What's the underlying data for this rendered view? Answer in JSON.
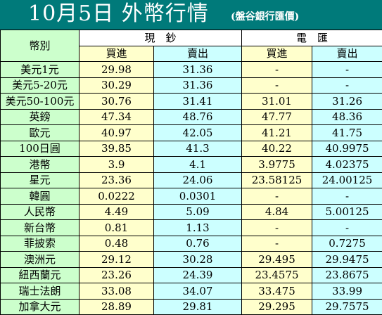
{
  "header": {
    "title": "10月5日 外幣行情",
    "subtitle": "(盤谷銀行匯價)"
  },
  "table": {
    "corner_label": "幣別",
    "groups": {
      "cash": "現　鈔",
      "remit": "電　匯"
    },
    "sub_headers": [
      "買進",
      "賣出",
      "買進",
      "賣出"
    ],
    "rows": [
      {
        "currency": "美元1元",
        "cash_buy": "29.98",
        "cash_sell": "31.36",
        "remit_buy": "-",
        "remit_sell": "-"
      },
      {
        "currency": "美元5-20元",
        "cash_buy": "30.29",
        "cash_sell": "31.36",
        "remit_buy": "-",
        "remit_sell": "-"
      },
      {
        "currency": "美元50-100元",
        "cash_buy": "30.76",
        "cash_sell": "31.41",
        "remit_buy": "31.01",
        "remit_sell": "31.26"
      },
      {
        "currency": "英鎊",
        "cash_buy": "47.34",
        "cash_sell": "48.76",
        "remit_buy": "47.77",
        "remit_sell": "48.36"
      },
      {
        "currency": "歐元",
        "cash_buy": "40.97",
        "cash_sell": "42.05",
        "remit_buy": "41.21",
        "remit_sell": "41.75"
      },
      {
        "currency": "100日圓",
        "cash_buy": "39.85",
        "cash_sell": "41.3",
        "remit_buy": "40.22",
        "remit_sell": "40.9975"
      },
      {
        "currency": "港幣",
        "cash_buy": "3.9",
        "cash_sell": "4.1",
        "remit_buy": "3.9775",
        "remit_sell": "4.02375"
      },
      {
        "currency": "星元",
        "cash_buy": "23.36",
        "cash_sell": "24.06",
        "remit_buy": "23.58125",
        "remit_sell": "24.00125"
      },
      {
        "currency": "韓圓",
        "cash_buy": "0.0222",
        "cash_sell": "0.0301",
        "remit_buy": "-",
        "remit_sell": "-"
      },
      {
        "currency": "人民幣",
        "cash_buy": "4.49",
        "cash_sell": "5.09",
        "remit_buy": "4.84",
        "remit_sell": "5.00125"
      },
      {
        "currency": "新台幣",
        "cash_buy": "0.81",
        "cash_sell": "1.13",
        "remit_buy": "-",
        "remit_sell": "-"
      },
      {
        "currency": "菲披索",
        "cash_buy": "0.48",
        "cash_sell": "0.76",
        "remit_buy": "-",
        "remit_sell": "0.7275"
      },
      {
        "currency": "澳洲元",
        "cash_buy": "29.12",
        "cash_sell": "30.28",
        "remit_buy": "29.495",
        "remit_sell": "29.9475"
      },
      {
        "currency": "紐西蘭元",
        "cash_buy": "23.26",
        "cash_sell": "24.39",
        "remit_buy": "23.4575",
        "remit_sell": "23.8675"
      },
      {
        "currency": "瑞士法朗",
        "cash_buy": "33.08",
        "cash_sell": "34.07",
        "remit_buy": "33.475",
        "remit_sell": "33.99"
      },
      {
        "currency": "加拿大元",
        "cash_buy": "28.89",
        "cash_sell": "29.81",
        "remit_buy": "29.295",
        "remit_sell": "29.7575"
      }
    ]
  },
  "colors": {
    "header_bg": "#007a7a",
    "label_bg": "#ccffcc",
    "buy_bg": "#ffffcc",
    "sell_bg": "#ccffff"
  }
}
